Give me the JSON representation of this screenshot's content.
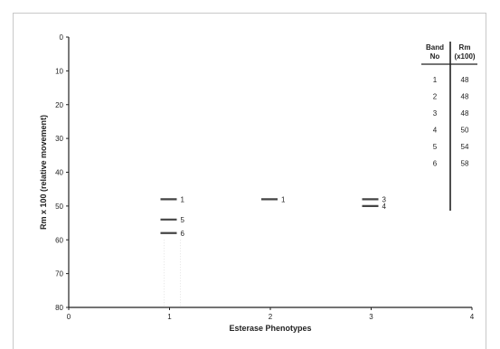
{
  "chart_data": {
    "type": "scatter",
    "xlabel": "Esterase Phenotypes",
    "ylabel": "Rm x 100 (relative movement)",
    "xlim": [
      0,
      4
    ],
    "ylim": [
      0,
      80
    ],
    "y_inverted": true,
    "x_ticks": [
      "0",
      "1",
      "2",
      "3",
      "4"
    ],
    "y_ticks": [
      "0",
      "10",
      "20",
      "30",
      "40",
      "50",
      "60",
      "70",
      "80"
    ],
    "grid": false,
    "colors": {
      "band": "#444444",
      "axis": "#222222",
      "text": "#222222"
    },
    "bands": [
      {
        "phenotype": 1,
        "band": "1",
        "rm": 48
      },
      {
        "phenotype": 1,
        "band": "5",
        "rm": 54
      },
      {
        "phenotype": 1,
        "band": "6",
        "rm": 58
      },
      {
        "phenotype": 2,
        "band": "1",
        "rm": 48
      },
      {
        "phenotype": 3,
        "band": "3",
        "rm": 48
      },
      {
        "phenotype": 3,
        "band": "4",
        "rm": 50
      }
    ],
    "table": {
      "headers": [
        [
          "Band",
          "No"
        ],
        [
          "Rm",
          "(x100)"
        ]
      ],
      "rows": [
        [
          "1",
          "48"
        ],
        [
          "2",
          "48"
        ],
        [
          "3",
          "48"
        ],
        [
          "4",
          "50"
        ],
        [
          "5",
          "54"
        ],
        [
          "6",
          "58"
        ]
      ]
    }
  }
}
